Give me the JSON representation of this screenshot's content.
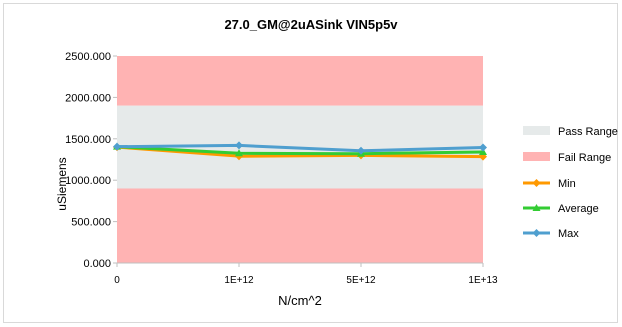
{
  "chart_data": {
    "type": "line",
    "title": "27.0_GM@2uASink VIN5p5v",
    "xlabel": "N/cm^2",
    "ylabel": "uSiemens",
    "categories": [
      "0",
      "1E+12",
      "5E+12",
      "1E+13"
    ],
    "ylim": [
      0,
      2500
    ],
    "yticks": [
      "0.000",
      "500.000",
      "1000.000",
      "1500.000",
      "2000.000",
      "2500.000"
    ],
    "pass_range": [
      900,
      1900
    ],
    "fail_ranges": [
      [
        0,
        900
      ],
      [
        1900,
        2500
      ]
    ],
    "series": [
      {
        "name": "Min",
        "values": [
          1400,
          1290,
          1300,
          1285
        ],
        "color": "#ff9900",
        "marker": "diamond"
      },
      {
        "name": "Average",
        "values": [
          1405,
          1325,
          1320,
          1340
        ],
        "color": "#33cc33",
        "marker": "triangle"
      },
      {
        "name": "Max",
        "values": [
          1405,
          1420,
          1355,
          1395
        ],
        "color": "#4f9fcf",
        "marker": "diamond"
      }
    ],
    "legend": {
      "placement": "right",
      "items": [
        {
          "label": "Pass Range",
          "color": "#e6eaea"
        },
        {
          "label": "Fail Range",
          "color": "#ffb3b3"
        }
      ]
    },
    "grid": false
  }
}
